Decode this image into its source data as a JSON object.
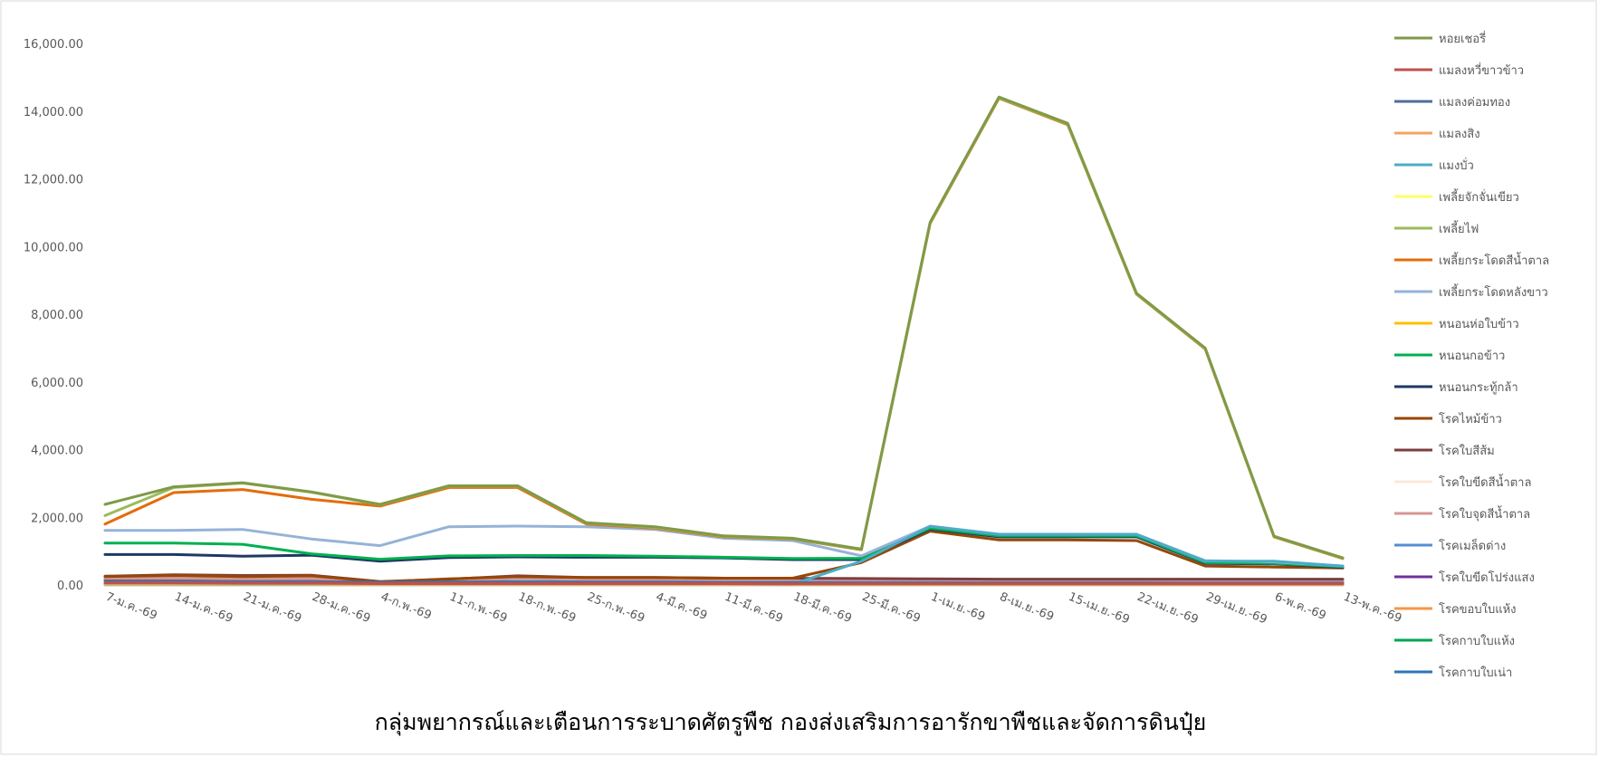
{
  "chart_data": {
    "type": "line",
    "title": "",
    "footer": "กลุ่มพยากรณ์และเตือนการระบาดศัตรูพืช กองส่งเสริมการอารักขาพืชและจัดการดินปุ๋ย",
    "xlabel": "",
    "ylabel": "",
    "ylim": [
      0,
      16000
    ],
    "y_ticks": [
      "0.00",
      "2,000.00",
      "4,000.00",
      "6,000.00",
      "8,000.00",
      "10,000.00",
      "12,000.00",
      "14,000.00",
      "16,000.00"
    ],
    "grid": false,
    "legend_position": "right",
    "categories": [
      "7-ม.ค.-69",
      "14-ม.ค.-69",
      "21-ม.ค.-69",
      "28-ม.ค.-69",
      "4-ก.พ.-69",
      "11-ก.พ.-69",
      "18-ก.พ.-69",
      "25-ก.พ.-69",
      "4-มี.ค.-69",
      "11-มี.ค.-69",
      "18-มี.ค.-69",
      "25-มี.ค.-69",
      "1-เม.ย.-69",
      "8-เม.ย.-69",
      "15-เม.ย.-69",
      "22-เม.ย.-69",
      "29-เม.ย.-69",
      "6-พ.ค.-69",
      "13-พ.ค.-69"
    ],
    "series": [
      {
        "name": "หอยเชอรี่",
        "color": "#7F9A48",
        "values": [
          2380,
          2900,
          3020,
          2750,
          2380,
          2930,
          2930,
          1840,
          1720,
          1450,
          1380,
          1060,
          10720,
          14420,
          13640,
          8620,
          7000,
          1440,
          800
        ]
      },
      {
        "name": "แมลงหวี่ขาวข้าว",
        "color": "#C0504D",
        "values": [
          60,
          60,
          50,
          50,
          40,
          40,
          40,
          40,
          40,
          40,
          30,
          30,
          30,
          30,
          30,
          30,
          30,
          30,
          30
        ]
      },
      {
        "name": "แมลงค่อมทอง",
        "color": "#4F6D9A",
        "values": [
          120,
          120,
          100,
          100,
          80,
          90,
          90,
          80,
          80,
          70,
          70,
          60,
          60,
          60,
          60,
          60,
          50,
          50,
          50
        ]
      },
      {
        "name": "แมลงสิง",
        "color": "#F4A460",
        "values": [
          30,
          30,
          30,
          30,
          20,
          20,
          20,
          20,
          20,
          20,
          20,
          20,
          20,
          20,
          20,
          20,
          20,
          20,
          20
        ]
      },
      {
        "name": "แมงบั่ว",
        "color": "#4BACC6",
        "values": [
          20,
          20,
          20,
          20,
          20,
          20,
          20,
          20,
          20,
          20,
          20,
          700,
          1730,
          1490,
          1490,
          1490,
          700,
          700,
          560
        ]
      },
      {
        "name": "เพลี้ยจักจั่นเขียว",
        "color": "#FFFF66",
        "values": [
          10,
          10,
          10,
          10,
          10,
          10,
          10,
          10,
          10,
          10,
          10,
          10,
          10,
          10,
          10,
          10,
          10,
          10,
          10
        ]
      },
      {
        "name": "เพลี้ยไฟ",
        "color": "#9BBB59",
        "values": [
          2050,
          2880,
          3010,
          2740,
          2370,
          2920,
          2920,
          1830,
          1700,
          1440,
          1370,
          1050,
          10700,
          14400,
          13620,
          8600,
          6980,
          1430,
          790
        ]
      },
      {
        "name": "เพลี้ยกระโดดสีน้ำตาล",
        "color": "#E46C0A",
        "values": [
          1800,
          2730,
          2820,
          2530,
          2330,
          2880,
          2880,
          1800,
          1680,
          1420,
          1360,
          1040,
          10680,
          14380,
          13600,
          8590,
          6970,
          1420,
          780
        ]
      },
      {
        "name": "เพลี้ยกระโดดหลังขาว",
        "color": "#95B3D7",
        "values": [
          1610,
          1610,
          1640,
          1360,
          1160,
          1720,
          1740,
          1720,
          1640,
          1380,
          1310,
          860,
          1740,
          1500,
          1500,
          1500,
          720,
          680,
          560
        ]
      },
      {
        "name": "หนอนห่อใบข้าว",
        "color": "#FFC000",
        "values": [
          20,
          20,
          20,
          20,
          20,
          20,
          20,
          20,
          20,
          20,
          20,
          20,
          20,
          20,
          20,
          20,
          20,
          20,
          20
        ]
      },
      {
        "name": "หนอนกอข้าว",
        "color": "#00B050",
        "values": [
          1240,
          1240,
          1200,
          920,
          760,
          860,
          870,
          870,
          850,
          820,
          780,
          790,
          1680,
          1450,
          1450,
          1450,
          660,
          640,
          540
        ]
      },
      {
        "name": "หนอนกระทู้กล้า",
        "color": "#1F3864",
        "values": [
          900,
          900,
          850,
          880,
          700,
          810,
          830,
          820,
          820,
          800,
          750,
          750,
          1650,
          1420,
          1420,
          1420,
          640,
          620,
          520
        ]
      },
      {
        "name": "โรคไหม้ข้าว",
        "color": "#974706",
        "values": [
          250,
          280,
          250,
          270,
          90,
          180,
          250,
          220,
          220,
          200,
          200,
          660,
          1590,
          1330,
          1330,
          1310,
          560,
          530,
          500
        ]
      },
      {
        "name": "โรคใบสีส้ม",
        "color": "#7B3F3F",
        "values": [
          260,
          300,
          280,
          290,
          100,
          170,
          270,
          220,
          220,
          200,
          200,
          190,
          180,
          170,
          170,
          170,
          170,
          170,
          170
        ]
      },
      {
        "name": "โรคใบขีดสีน้ำตาล",
        "color": "#FDE9D9",
        "values": [
          10,
          10,
          10,
          10,
          10,
          10,
          10,
          10,
          10,
          10,
          10,
          10,
          10,
          10,
          10,
          10,
          10,
          10,
          10
        ]
      },
      {
        "name": "โรคใบจุดสีน้ำตาล",
        "color": "#D99694",
        "values": [
          200,
          200,
          180,
          190,
          90,
          130,
          200,
          170,
          170,
          160,
          160,
          150,
          150,
          140,
          140,
          140,
          140,
          140,
          140
        ]
      },
      {
        "name": "โรคเมล็ดด่าง",
        "color": "#558ED5",
        "values": [
          150,
          150,
          120,
          120,
          80,
          90,
          110,
          100,
          100,
          90,
          90,
          90,
          90,
          80,
          80,
          80,
          80,
          80,
          80
        ]
      },
      {
        "name": "โรคใบขีดโปร่งแสง",
        "color": "#7030A0",
        "values": [
          30,
          30,
          30,
          30,
          20,
          20,
          20,
          20,
          20,
          20,
          20,
          20,
          20,
          20,
          20,
          20,
          20,
          20,
          20
        ]
      },
      {
        "name": "โรคขอบใบแห้ง",
        "color": "#F79646",
        "values": [
          10,
          10,
          10,
          10,
          10,
          10,
          10,
          10,
          10,
          10,
          10,
          10,
          10,
          10,
          10,
          10,
          10,
          10,
          10
        ]
      },
      {
        "name": "โรคกาบใบแห้ง",
        "color": "#00A651",
        "values": [
          5,
          5,
          5,
          5,
          5,
          5,
          5,
          5,
          5,
          5,
          5,
          5,
          5,
          5,
          5,
          5,
          5,
          5,
          5
        ]
      },
      {
        "name": "โรคกาบใบเน่า",
        "color": "#2E75B6",
        "values": [
          5,
          5,
          5,
          5,
          5,
          5,
          5,
          5,
          5,
          5,
          5,
          5,
          5,
          5,
          5,
          5,
          5,
          5,
          5
        ]
      }
    ]
  }
}
